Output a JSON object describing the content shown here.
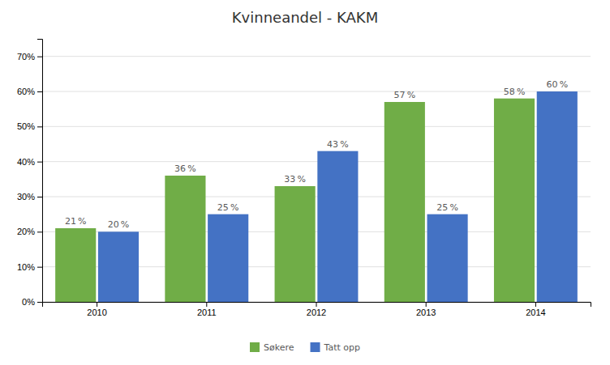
{
  "chart_data": {
    "type": "bar",
    "title": "Kvinneandel - KAKM",
    "categories": [
      "2010",
      "2011",
      "2012",
      "2013",
      "2014"
    ],
    "series": [
      {
        "name": "Søkere",
        "color": "#70ad47",
        "values": [
          0.21,
          0.36,
          0.33,
          0.57,
          0.58
        ],
        "value_labels": [
          "21 %",
          "36 %",
          "33 %",
          "57 %",
          "58 %"
        ]
      },
      {
        "name": "Tatt opp",
        "color": "#4472c4",
        "values": [
          0.2,
          0.25,
          0.43,
          0.25,
          0.6
        ],
        "value_labels": [
          "20 %",
          "25 %",
          "43 %",
          "25 %",
          "60 %"
        ]
      }
    ],
    "ylim": [
      0,
      0.75
    ],
    "yticks": [
      {
        "value": 0.0,
        "label": "0%"
      },
      {
        "value": 0.1,
        "label": "10%"
      },
      {
        "value": 0.2,
        "label": "20%"
      },
      {
        "value": 0.3,
        "label": "30%"
      },
      {
        "value": 0.4,
        "label": "40%"
      },
      {
        "value": 0.5,
        "label": "50%"
      },
      {
        "value": 0.6,
        "label": "60%"
      },
      {
        "value": 0.7,
        "label": "70%"
      }
    ],
    "grid": true,
    "legend": "bottom",
    "data_labels": true
  }
}
